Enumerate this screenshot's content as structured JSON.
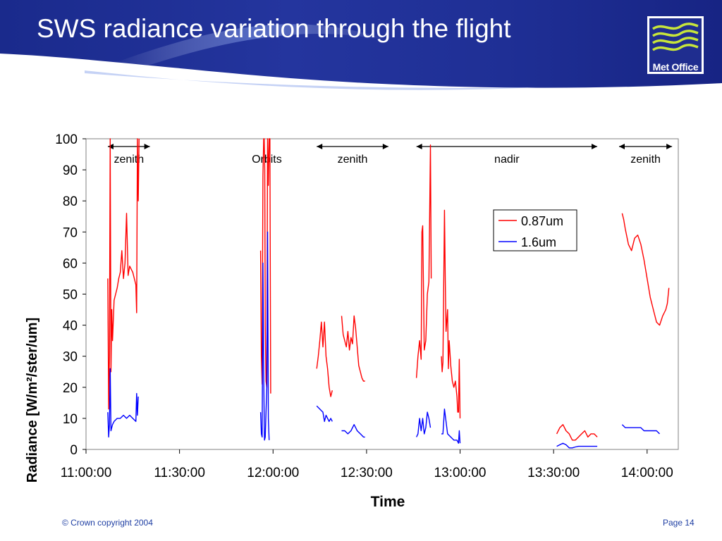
{
  "slide": {
    "title": "SWS radiance variation through the flight",
    "logo_text": "Met Office",
    "copyright": "© Crown copyright 2004",
    "page": "Page 14"
  },
  "colors": {
    "header_blue": "#1f2d8f",
    "header_light": "#6f8ee0",
    "series_red": "#ff0000",
    "series_blue": "#0000ff",
    "logo_lines": "#c8e63a"
  },
  "chart_data": {
    "type": "line",
    "title": "",
    "xlabel": "Time",
    "ylabel": "Radiance [W/m²/ster/um]",
    "ylim": [
      0,
      100
    ],
    "yticks": [
      "0",
      "10",
      "20",
      "30",
      "40",
      "50",
      "60",
      "70",
      "80",
      "90",
      "100"
    ],
    "xlim": [
      "11:00:00",
      "14:10:00"
    ],
    "xticks": [
      "11:00:00",
      "11:30:00",
      "12:00:00",
      "12:30:00",
      "13:00:00",
      "13:30:00",
      "14:00:00"
    ],
    "grid": false,
    "legend_position": "top-right",
    "annotations": [
      {
        "label": "zenith",
        "start": "11:07:00",
        "end": "11:20:30"
      },
      {
        "label": "Orbits",
        "start": "11:58:00",
        "end": "11:58:00"
      },
      {
        "label": "zenith",
        "start": "12:14:00",
        "end": "12:37:00"
      },
      {
        "label": "nadir",
        "start": "12:46:00",
        "end": "13:44:00"
      },
      {
        "label": "zenith",
        "start": "13:51:00",
        "end": "14:08:00"
      }
    ],
    "series": [
      {
        "name": "0.87um",
        "color": "#ff0000",
        "segments": [
          [
            [
              "11:07:00",
              55
            ],
            [
              "11:07:15",
              13
            ],
            [
              "11:07:30",
              30
            ],
            [
              "11:07:45",
              100
            ],
            [
              "11:08:00",
              25
            ],
            [
              "11:08:15",
              45
            ],
            [
              "11:08:30",
              35
            ],
            [
              "11:09:00",
              48
            ],
            [
              "11:09:30",
              50
            ],
            [
              "11:10:00",
              52
            ],
            [
              "11:10:30",
              55
            ],
            [
              "11:11:00",
              57
            ],
            [
              "11:11:30",
              64
            ],
            [
              "11:12:00",
              55
            ],
            [
              "11:12:30",
              60
            ],
            [
              "11:13:00",
              76
            ],
            [
              "11:13:30",
              56
            ],
            [
              "11:14:00",
              59
            ],
            [
              "11:14:30",
              58
            ],
            [
              "11:15:00",
              57
            ],
            [
              "11:15:30",
              55
            ],
            [
              "11:16:00",
              53
            ],
            [
              "11:16:15",
              44
            ],
            [
              "11:16:30",
              100
            ],
            [
              "11:16:45",
              80
            ],
            [
              "11:17:00",
              100
            ]
          ],
          [
            [
              "11:56:00",
              64
            ],
            [
              "11:56:15",
              30
            ],
            [
              "11:56:30",
              21
            ],
            [
              "11:56:45",
              88
            ],
            [
              "11:57:00",
              100
            ],
            [
              "11:57:10",
              100
            ],
            [
              "11:57:20",
              90
            ],
            [
              "11:57:30",
              40
            ],
            [
              "11:57:45",
              22
            ],
            [
              "11:58:00",
              20
            ],
            [
              "11:58:15",
              100
            ],
            [
              "11:58:30",
              85
            ],
            [
              "11:58:45",
              100
            ],
            [
              "11:59:00",
              100
            ],
            [
              "11:59:15",
              18
            ]
          ],
          [
            [
              "12:14:00",
              26
            ],
            [
              "12:14:30",
              30
            ],
            [
              "12:15:00",
              35
            ],
            [
              "12:15:30",
              41
            ],
            [
              "12:16:00",
              33
            ],
            [
              "12:16:30",
              41
            ],
            [
              "12:17:00",
              30
            ],
            [
              "12:17:30",
              26
            ],
            [
              "12:18:00",
              20
            ],
            [
              "12:18:30",
              17
            ],
            [
              "12:19:00",
              19
            ]
          ],
          [
            [
              "12:22:00",
              43
            ],
            [
              "12:22:30",
              37
            ],
            [
              "12:23:00",
              35
            ],
            [
              "12:23:30",
              33
            ],
            [
              "12:24:00",
              38
            ],
            [
              "12:24:30",
              32
            ],
            [
              "12:25:00",
              36
            ],
            [
              "12:25:30",
              34
            ],
            [
              "12:26:00",
              43
            ],
            [
              "12:26:30",
              39
            ],
            [
              "12:27:00",
              33
            ],
            [
              "12:27:30",
              27
            ],
            [
              "12:28:00",
              25
            ],
            [
              "12:28:30",
              23
            ],
            [
              "12:29:00",
              22
            ],
            [
              "12:29:30",
              22
            ]
          ],
          [
            [
              "12:46:00",
              23
            ],
            [
              "12:46:30",
              30
            ],
            [
              "12:47:00",
              35
            ],
            [
              "12:47:30",
              29
            ],
            [
              "12:47:45",
              70
            ],
            [
              "12:48:00",
              72
            ],
            [
              "12:48:30",
              32
            ],
            [
              "12:49:00",
              35
            ],
            [
              "12:49:30",
              50
            ],
            [
              "12:50:00",
              54
            ],
            [
              "12:50:30",
              98
            ],
            [
              "12:50:45",
              55
            ]
          ],
          [
            [
              "12:54:00",
              30
            ],
            [
              "12:54:15",
              25
            ],
            [
              "12:54:30",
              28
            ],
            [
              "12:55:00",
              77
            ],
            [
              "12:55:15",
              55
            ],
            [
              "12:55:30",
              38
            ],
            [
              "12:56:00",
              45
            ],
            [
              "12:56:15",
              26
            ],
            [
              "12:56:30",
              35
            ],
            [
              "12:57:00",
              27
            ],
            [
              "12:57:30",
              22
            ],
            [
              "12:58:00",
              20
            ],
            [
              "12:58:30",
              22
            ],
            [
              "12:59:00",
              17
            ],
            [
              "12:59:15",
              12
            ],
            [
              "12:59:30",
              12
            ],
            [
              "12:59:45",
              29
            ],
            [
              "13:00:00",
              10
            ]
          ],
          [
            [
              "13:31:00",
              5
            ],
            [
              "13:32:00",
              7
            ],
            [
              "13:33:00",
              8
            ],
            [
              "13:34:00",
              6
            ],
            [
              "13:35:00",
              5
            ],
            [
              "13:36:00",
              3
            ],
            [
              "13:37:00",
              3
            ],
            [
              "13:38:00",
              4
            ],
            [
              "13:39:00",
              5
            ],
            [
              "13:40:00",
              6
            ],
            [
              "13:41:00",
              4
            ],
            [
              "13:42:00",
              5
            ],
            [
              "13:43:00",
              5
            ],
            [
              "13:44:00",
              4
            ]
          ],
          [
            [
              "13:52:00",
              76
            ],
            [
              "13:52:30",
              74
            ],
            [
              "13:53:00",
              71
            ],
            [
              "13:54:00",
              66
            ],
            [
              "13:55:00",
              64
            ],
            [
              "13:56:00",
              68
            ],
            [
              "13:57:00",
              69
            ],
            [
              "13:58:00",
              66
            ],
            [
              "13:59:00",
              61
            ],
            [
              "14:00:00",
              55
            ],
            [
              "14:01:00",
              49
            ],
            [
              "14:02:00",
              45
            ],
            [
              "14:03:00",
              41
            ],
            [
              "14:04:00",
              40
            ],
            [
              "14:05:00",
              43
            ],
            [
              "14:06:00",
              45
            ],
            [
              "14:06:30",
              47
            ],
            [
              "14:07:00",
              52
            ]
          ]
        ]
      },
      {
        "name": "1.6um",
        "color": "#0000ff",
        "segments": [
          [
            [
              "11:07:00",
              12
            ],
            [
              "11:07:15",
              4
            ],
            [
              "11:07:30",
              8
            ],
            [
              "11:07:45",
              26
            ],
            [
              "11:08:00",
              6
            ],
            [
              "11:08:30",
              8
            ],
            [
              "11:09:00",
              9
            ],
            [
              "11:10:00",
              10
            ],
            [
              "11:11:00",
              10
            ],
            [
              "11:12:00",
              11
            ],
            [
              "11:13:00",
              10
            ],
            [
              "11:14:00",
              11
            ],
            [
              "11:15:00",
              10
            ],
            [
              "11:16:00",
              9
            ],
            [
              "11:16:15",
              18
            ],
            [
              "11:16:30",
              11
            ],
            [
              "11:16:45",
              17
            ]
          ],
          [
            [
              "11:56:00",
              12
            ],
            [
              "11:56:15",
              5
            ],
            [
              "11:56:30",
              4
            ],
            [
              "11:56:45",
              60
            ],
            [
              "11:57:00",
              24
            ],
            [
              "11:57:15",
              3
            ],
            [
              "11:57:30",
              4
            ],
            [
              "11:58:00",
              20
            ],
            [
              "11:58:15",
              70
            ],
            [
              "11:58:30",
              10
            ],
            [
              "11:58:45",
              3
            ]
          ],
          [
            [
              "12:14:00",
              14
            ],
            [
              "12:15:00",
              13
            ],
            [
              "12:16:00",
              12
            ],
            [
              "12:16:30",
              9
            ],
            [
              "12:17:00",
              11
            ],
            [
              "12:18:00",
              9
            ],
            [
              "12:18:30",
              10
            ],
            [
              "12:19:00",
              9
            ]
          ],
          [
            [
              "12:22:00",
              6
            ],
            [
              "12:23:00",
              6
            ],
            [
              "12:24:00",
              5
            ],
            [
              "12:25:00",
              6
            ],
            [
              "12:26:00",
              8
            ],
            [
              "12:26:30",
              7
            ],
            [
              "12:27:00",
              6
            ],
            [
              "12:28:00",
              5
            ],
            [
              "12:29:00",
              4
            ],
            [
              "12:29:30",
              4
            ]
          ],
          [
            [
              "12:46:00",
              4
            ],
            [
              "12:46:30",
              5
            ],
            [
              "12:47:00",
              10
            ],
            [
              "12:47:30",
              6
            ],
            [
              "12:48:00",
              10
            ],
            [
              "12:48:30",
              5
            ],
            [
              "12:49:00",
              7
            ],
            [
              "12:49:30",
              12
            ],
            [
              "12:50:00",
              10
            ],
            [
              "12:50:30",
              7
            ]
          ],
          [
            [
              "12:54:00",
              5
            ],
            [
              "12:54:30",
              5
            ],
            [
              "12:55:00",
              13
            ],
            [
              "12:55:30",
              9
            ],
            [
              "12:56:00",
              5
            ],
            [
              "12:57:00",
              4
            ],
            [
              "12:58:00",
              3
            ],
            [
              "12:59:00",
              3
            ],
            [
              "12:59:30",
              2
            ],
            [
              "12:59:45",
              6
            ],
            [
              "13:00:00",
              2
            ]
          ],
          [
            [
              "13:31:00",
              1
            ],
            [
              "13:32:00",
              1.5
            ],
            [
              "13:33:00",
              2
            ],
            [
              "13:34:00",
              1.5
            ],
            [
              "13:35:00",
              0.5
            ],
            [
              "13:36:00",
              0.5
            ],
            [
              "13:37:00",
              0.8
            ],
            [
              "13:38:00",
              1
            ],
            [
              "13:39:00",
              1
            ],
            [
              "13:40:00",
              1
            ],
            [
              "13:41:00",
              1
            ],
            [
              "13:42:00",
              1
            ],
            [
              "13:43:00",
              1
            ],
            [
              "13:44:00",
              1
            ]
          ],
          [
            [
              "13:52:00",
              8
            ],
            [
              "13:53:00",
              7
            ],
            [
              "13:54:00",
              7
            ],
            [
              "13:55:00",
              7
            ],
            [
              "13:56:00",
              7
            ],
            [
              "13:57:00",
              7
            ],
            [
              "13:58:00",
              7
            ],
            [
              "13:59:00",
              6
            ],
            [
              "14:00:00",
              6
            ],
            [
              "14:01:00",
              6
            ],
            [
              "14:02:00",
              6
            ],
            [
              "14:03:00",
              6
            ],
            [
              "14:04:00",
              5
            ]
          ]
        ]
      }
    ]
  }
}
